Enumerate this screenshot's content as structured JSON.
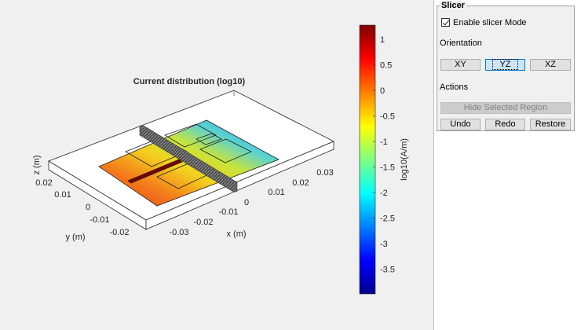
{
  "plot": {
    "title": "Current distribution (log10)",
    "x_axis": {
      "label": "x (m)",
      "ticks": [
        "-0.03",
        "-0.02",
        "-0.01",
        "0",
        "0.01",
        "0.02",
        "0.03"
      ]
    },
    "y_axis": {
      "label": "y (m)",
      "ticks": [
        "0.02",
        "0.01",
        "0",
        "-0.01",
        "-0.02"
      ]
    },
    "z_axis": {
      "label": "z (m)"
    },
    "colorbar": {
      "label": "log10(A/m)",
      "ticks": [
        "1",
        "0.5",
        "0",
        "-0.5",
        "-1",
        "-1.5",
        "-2",
        "-2.5",
        "-3",
        "-3.5"
      ],
      "colormap": "jet"
    }
  },
  "slicer": {
    "title": "Slicer",
    "enable_label": "Enable slicer Mode",
    "enable_checked": true,
    "orientation_label": "Orientation",
    "orientation_buttons": [
      "XY",
      "YZ",
      "XZ"
    ],
    "selected_orientation": "YZ",
    "actions_label": "Actions",
    "hide_selected_label": "Hide Selected Region",
    "undo_label": "Undo",
    "redo_label": "Redo",
    "restore_label": "Restore"
  }
}
